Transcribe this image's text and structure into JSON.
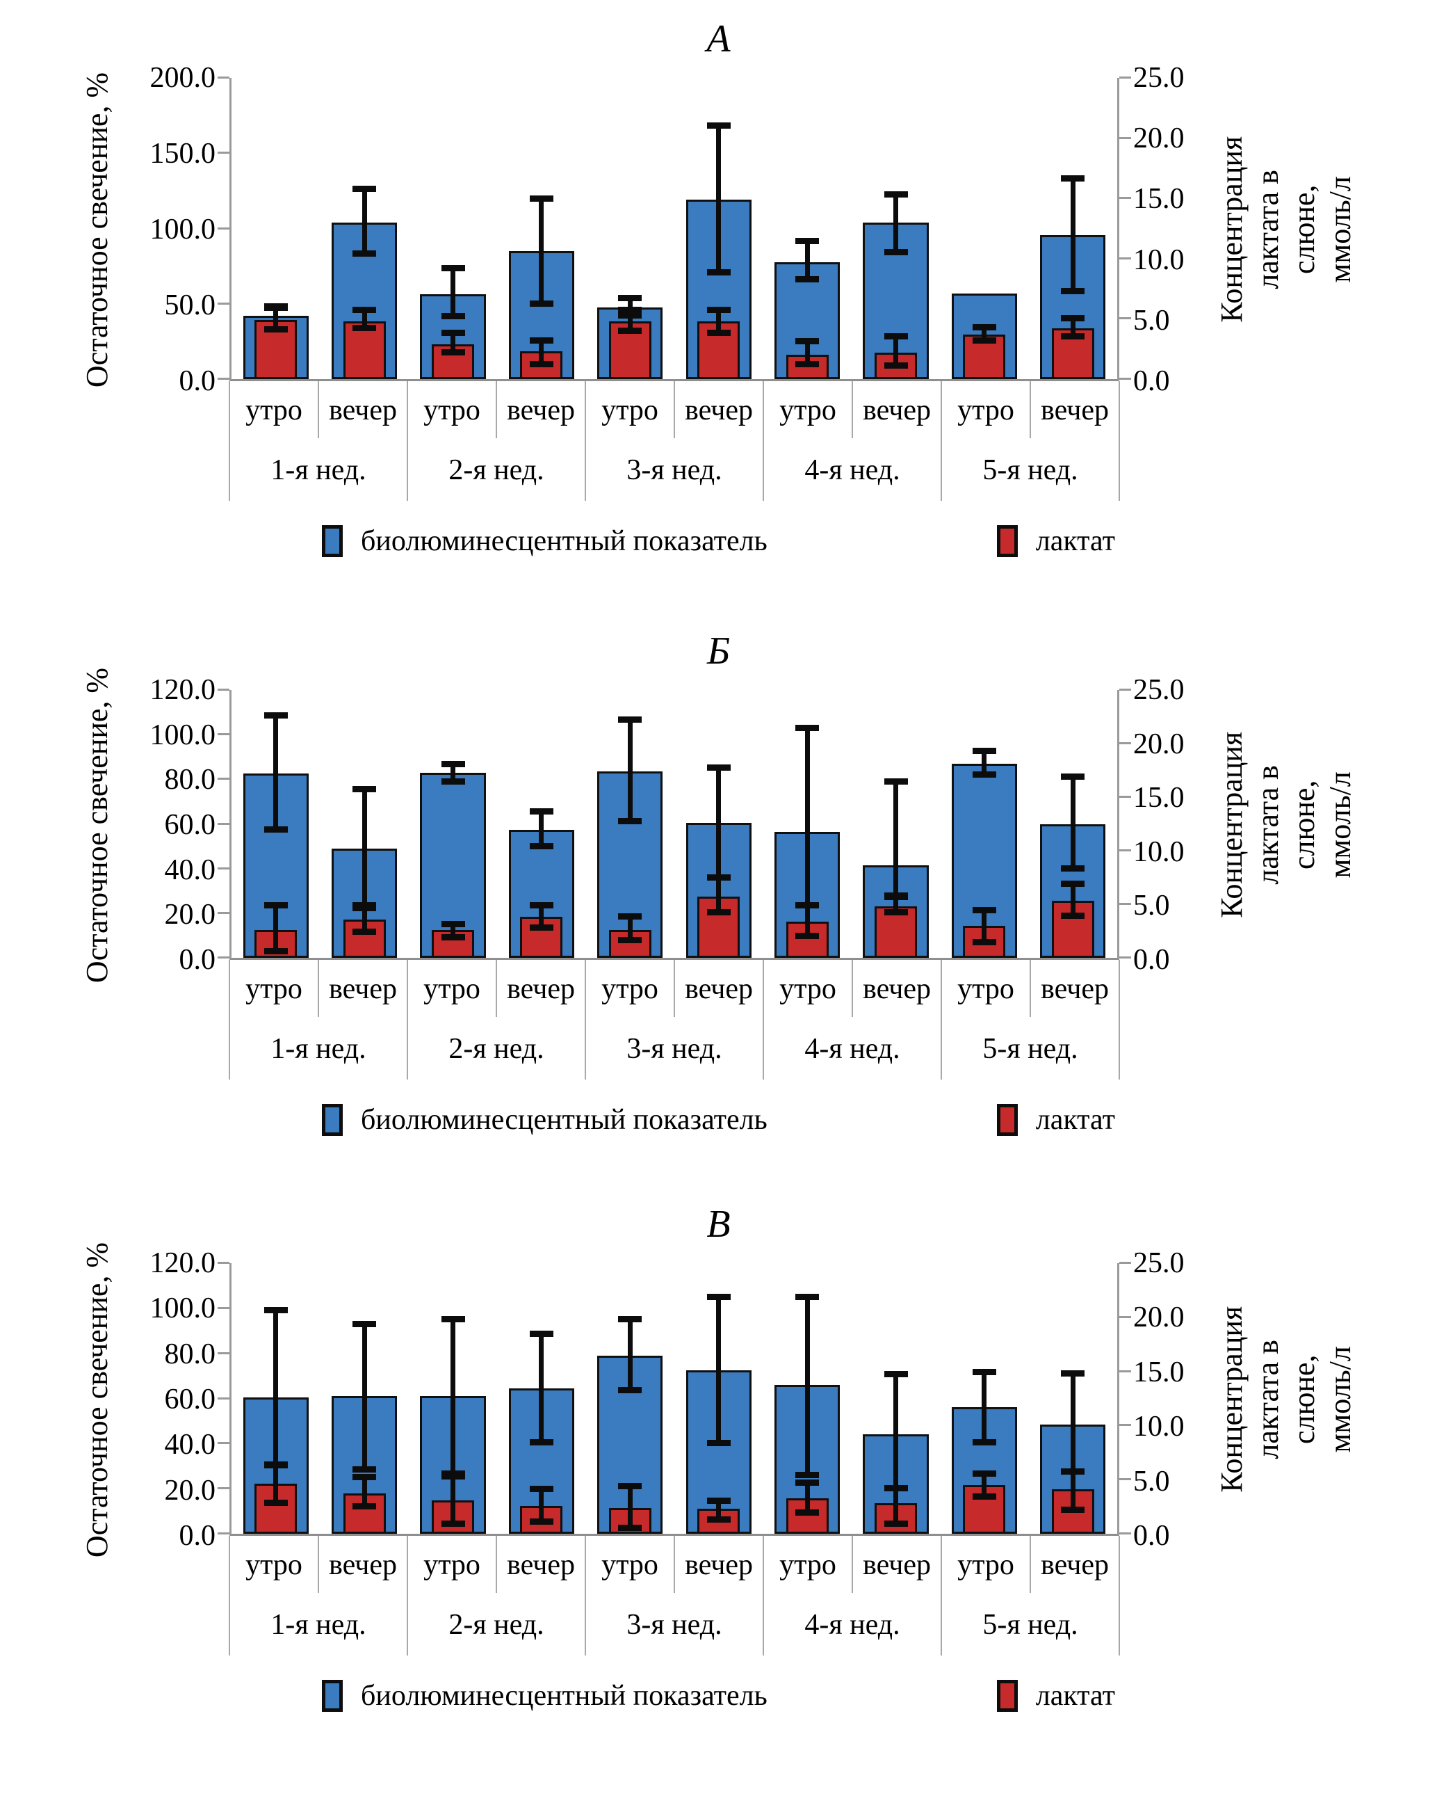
{
  "figure": {
    "background": "#ffffff",
    "axis_line_color": "#9a9a9a",
    "error_bar_color": "#0c0c0c",
    "bar_border_color": "#101010"
  },
  "legend": {
    "bioluminescent_label": "биолюминесцентный показатель",
    "lactate_label": "лактат",
    "bioluminescent_color": "#3b7cc0",
    "lactate_color": "#c62a2a"
  },
  "chart_data": [
    {
      "type": "bar",
      "panel_label": "А",
      "left_axis": {
        "label": "Остаточное свечение, %",
        "max": 200,
        "tick_values": [
          0,
          50,
          100,
          150,
          200
        ],
        "tick_labels": [
          "0.0",
          "50.0",
          "100.0",
          "150.0",
          "200.0"
        ]
      },
      "right_axis": {
        "label": "Концентрация лактата в слюне, ммоль/л",
        "max": 25,
        "tick_values": [
          0,
          5,
          10,
          15,
          20,
          25
        ],
        "tick_labels": [
          "0.0",
          "5.0",
          "10.0",
          "15.0",
          "20.0",
          "25.0"
        ]
      },
      "week_labels": [
        "1-я нед.",
        "2-я нед.",
        "3-я нед.",
        "4-я нед.",
        "5-я нед."
      ],
      "time_labels": [
        "утро",
        "вечер"
      ],
      "series": [
        {
          "name": "биолюминесцентный показатель",
          "axis": "left",
          "color": "#3b7cc0",
          "values": [
            42,
            104,
            56.5,
            85,
            47.5,
            119,
            77.5,
            104,
            57,
            95.5
          ],
          "err_low": [
            36,
            83,
            41.5,
            50,
            42,
            70.5,
            66,
            84,
            null,
            58
          ],
          "err_high": [
            48,
            126,
            73.5,
            119.5,
            53.5,
            168,
            91.5,
            122.5,
            null,
            133
          ]
        },
        {
          "name": "лактат",
          "axis": "right",
          "color": "#c62a2a",
          "values": [
            4.9,
            4.8,
            2.9,
            2.3,
            4.8,
            4.8,
            2.0,
            2.2,
            3.7,
            4.2
          ],
          "err_low": [
            4.1,
            4.2,
            2.2,
            1.2,
            4.0,
            3.8,
            1.2,
            1.1,
            3.2,
            3.5
          ],
          "err_high": [
            5.9,
            5.7,
            3.8,
            3.2,
            5.7,
            5.7,
            3.1,
            3.5,
            4.3,
            5.0
          ]
        }
      ]
    },
    {
      "type": "bar",
      "panel_label": "Б",
      "left_axis": {
        "label": "Остаточное свечение, %",
        "max": 120,
        "tick_values": [
          0,
          20,
          40,
          60,
          80,
          100,
          120
        ],
        "tick_labels": [
          "0.0",
          "20.0",
          "40.0",
          "60.0",
          "80.0",
          "100.0",
          "120.0"
        ]
      },
      "right_axis": {
        "label": "Концентрация лактата в слюне, ммоль/л",
        "max": 25,
        "tick_values": [
          0,
          5,
          10,
          15,
          20,
          25
        ],
        "tick_labels": [
          "0.0",
          "5.0",
          "10.0",
          "15.0",
          "20.0",
          "25.0"
        ]
      },
      "week_labels": [
        "1-я нед.",
        "2-я нед.",
        "3-я нед.",
        "4-я нед.",
        "5-я нед."
      ],
      "time_labels": [
        "утро",
        "вечер"
      ],
      "series": [
        {
          "name": "биолюминесцентный показатель",
          "axis": "left",
          "color": "#3b7cc0",
          "values": [
            82.5,
            49,
            83,
            57.5,
            83.5,
            60.5,
            56.5,
            41.5,
            87,
            60
          ],
          "err_low": [
            57.5,
            22,
            79,
            50,
            61,
            36,
            23.5,
            27,
            82,
            40
          ],
          "err_high": [
            108.5,
            75.5,
            86.5,
            65.5,
            106.5,
            85,
            103,
            79,
            92.5,
            81
          ]
        },
        {
          "name": "лактат",
          "axis": "right",
          "color": "#c62a2a",
          "values": [
            2.6,
            3.6,
            2.6,
            3.8,
            2.6,
            5.7,
            3.4,
            4.8,
            3.0,
            5.3
          ],
          "err_low": [
            0.6,
            2.4,
            1.9,
            2.8,
            1.6,
            4.2,
            2.0,
            4.2,
            1.4,
            3.9
          ],
          "err_high": [
            4.9,
            4.9,
            3.1,
            4.9,
            3.8,
            7.5,
            4.9,
            5.8,
            4.4,
            6.9
          ]
        }
      ]
    },
    {
      "type": "bar",
      "panel_label": "В",
      "left_axis": {
        "label": "Остаточное свечение, %",
        "max": 120,
        "tick_values": [
          0,
          20,
          40,
          60,
          80,
          100,
          120
        ],
        "tick_labels": [
          "0.0",
          "20.0",
          "40.0",
          "60.0",
          "80.0",
          "100.0",
          "120.0"
        ]
      },
      "right_axis": {
        "label": "Концентрация лактата в слюне, ммоль/л",
        "max": 25,
        "tick_values": [
          0,
          5,
          10,
          15,
          20,
          25
        ],
        "tick_labels": [
          "0.0",
          "5.0",
          "10.0",
          "15.0",
          "20.0",
          "25.0"
        ]
      },
      "week_labels": [
        "1-я нед.",
        "2-я нед.",
        "3-я нед.",
        "4-я нед.",
        "5-я нед."
      ],
      "time_labels": [
        "утро",
        "вечер"
      ],
      "series": [
        {
          "name": "биолюминесцентный показатель",
          "axis": "left",
          "color": "#3b7cc0",
          "values": [
            60.5,
            61,
            61,
            64.5,
            79,
            72.5,
            66,
            44,
            56,
            48.5
          ],
          "err_low": [
            30.5,
            28.5,
            26.5,
            40.5,
            63.5,
            40,
            26,
            20,
            40.5,
            27.5
          ],
          "err_high": [
            99,
            93,
            95,
            88.5,
            95,
            105,
            105,
            70.5,
            71.5,
            71
          ]
        },
        {
          "name": "лактат",
          "axis": "right",
          "color": "#c62a2a",
          "values": [
            4.6,
            3.7,
            3.1,
            2.6,
            2.4,
            2.3,
            3.3,
            2.8,
            4.5,
            4.1
          ],
          "err_low": [
            2.8,
            2.5,
            0.9,
            1.1,
            0.5,
            1.3,
            1.9,
            0.9,
            3.4,
            2.2
          ],
          "err_high": [
            6.3,
            5.2,
            5.3,
            4.1,
            4.4,
            3.0,
            4.7,
            4.2,
            5.5,
            5.7
          ]
        }
      ]
    }
  ]
}
